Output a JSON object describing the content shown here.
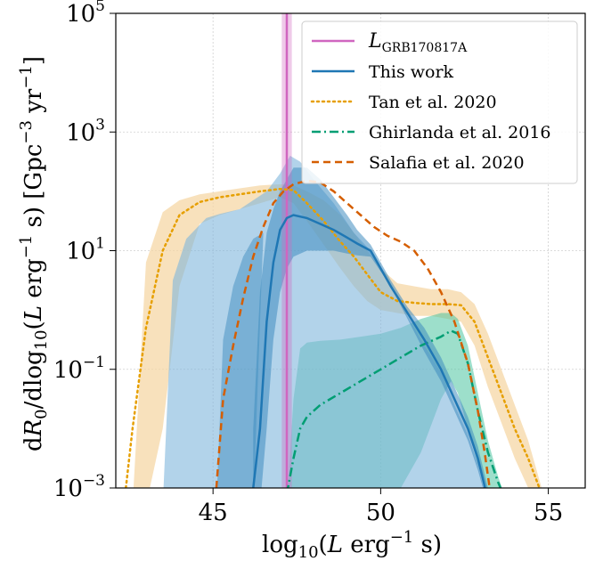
{
  "chart_data": {
    "type": "line",
    "xlabel": "log10(L erg^-1 s)",
    "ylabel": "dR0/dlog10(L erg^-1 s) [Gpc^-3 yr^-1]",
    "xlim": [
      42.1,
      56.1
    ],
    "ylim_log10": [
      -3,
      5
    ],
    "yscale": "log",
    "grid": true,
    "legend_position": "top-right",
    "xticks": [
      45,
      50,
      55
    ],
    "yticks": [
      {
        "value_log10": -3,
        "base": "10",
        "exp": "−3"
      },
      {
        "value_log10": -1,
        "base": "10",
        "exp": "−1"
      },
      {
        "value_log10": 1,
        "base": "10",
        "exp": "1"
      },
      {
        "value_log10": 3,
        "base": "10",
        "exp": "3"
      },
      {
        "value_log10": 5,
        "base": "10",
        "exp": "5"
      }
    ],
    "vertical_line": {
      "name": "L_GRB170817A",
      "x": 47.2,
      "band": [
        47.05,
        47.35
      ],
      "color": "#d066c0"
    },
    "series": [
      {
        "name": "This work",
        "color": "#1f77b4",
        "style": "solid",
        "x": [
          46.2,
          46.4,
          46.6,
          46.8,
          47.0,
          47.2,
          47.4,
          47.8,
          48.2,
          48.6,
          49.0,
          49.3,
          49.7,
          50.3,
          50.8,
          51.3,
          51.8,
          52.2,
          52.6,
          52.9,
          53.2
        ],
        "y_log10": [
          -3,
          -2.0,
          -0.2,
          0.8,
          1.35,
          1.55,
          1.6,
          1.55,
          1.45,
          1.35,
          1.22,
          1.12,
          1.0,
          0.4,
          -0.05,
          -0.5,
          -1.0,
          -1.5,
          -2.0,
          -2.5,
          -3.2
        ],
        "band_lower_log10": [
          -3.3,
          -3.3,
          -2.0,
          -0.5,
          0.3,
          0.7,
          0.9,
          1.0,
          1.0,
          1.0,
          0.95,
          0.92,
          0.9,
          0.4,
          -0.15,
          -0.7,
          -1.2,
          -1.7,
          -2.2,
          -2.7,
          -3.3
        ],
        "band_upper_log10": [
          -2.0,
          0.3,
          1.3,
          1.7,
          2.0,
          2.2,
          2.4,
          2.4,
          2.2,
          1.9,
          1.6,
          1.35,
          1.1,
          0.5,
          0.05,
          -0.3,
          -0.8,
          -1.3,
          -1.8,
          -2.3,
          -3.0
        ],
        "outer_lower_log10": [
          -3.3,
          -3.3,
          -3.3,
          -3.3,
          -1.5,
          -0.5,
          0.2,
          0.6,
          0.8,
          0.85,
          0.85,
          0.85,
          0.85,
          0.3,
          -0.25,
          -0.8,
          -1.3,
          -1.8,
          -2.3,
          -2.8,
          -3.3
        ],
        "outer_x": [
          43.5,
          43.8,
          44.2,
          44.8,
          45.2,
          45.8,
          46.2,
          46.6,
          47.0,
          47.3,
          47.6,
          48.0,
          48.6,
          49.2,
          49.7
        ],
        "outer_upper_log10": [
          -3.3,
          0.5,
          1.2,
          1.55,
          1.62,
          1.7,
          1.85,
          2.0,
          2.3,
          2.6,
          2.5,
          2.2,
          1.8,
          1.3,
          1.0
        ]
      },
      {
        "name": "Tan et al. 2020",
        "color": "#e69f00",
        "style": "dotted",
        "x": [
          42.4,
          42.6,
          43.0,
          43.5,
          44.0,
          44.6,
          45.2,
          45.8,
          46.4,
          47.0,
          47.4,
          47.8,
          48.3,
          48.8,
          49.2,
          49.6,
          50.0,
          50.5,
          51.0,
          51.5,
          52.0,
          52.4,
          52.8,
          53.2,
          53.6,
          54.0,
          54.4,
          54.8
        ],
        "y_log10": [
          -3.0,
          -2.0,
          -0.3,
          1.0,
          1.6,
          1.82,
          1.9,
          1.95,
          2.0,
          2.04,
          2.02,
          1.8,
          1.5,
          1.15,
          0.9,
          0.6,
          0.3,
          0.15,
          0.12,
          0.1,
          0.1,
          0.08,
          -0.2,
          -0.8,
          -1.4,
          -2.0,
          -2.5,
          -3.1
        ],
        "band_lower_log10": [
          -3.3,
          -3.3,
          -3.3,
          -2.0,
          0.4,
          1.45,
          1.6,
          1.7,
          1.8,
          1.9,
          1.8,
          1.5,
          1.1,
          0.7,
          0.4,
          0.15,
          0.0,
          -0.05,
          -0.1,
          -0.1,
          -0.15,
          -0.2,
          -0.6,
          -1.3,
          -1.9,
          -2.5,
          -3.0,
          -3.3
        ],
        "band_upper_log10": [
          -3.3,
          -3.3,
          0.8,
          1.65,
          1.85,
          1.95,
          2.0,
          2.05,
          2.1,
          2.12,
          2.1,
          2.0,
          1.85,
          1.6,
          1.3,
          1.0,
          0.7,
          0.45,
          0.4,
          0.35,
          0.35,
          0.3,
          0.1,
          -0.4,
          -1.0,
          -1.6,
          -2.2,
          -3.0
        ]
      },
      {
        "name": "Ghirlanda et al. 2016",
        "color": "#009e73",
        "style": "dashdot",
        "x": [
          47.2,
          47.4,
          47.6,
          47.8,
          48.2,
          48.8,
          49.4,
          50.0,
          50.6,
          51.2,
          51.8,
          52.1,
          52.3,
          52.6,
          52.9,
          53.2,
          53.5,
          53.8
        ],
        "y_log10": [
          -3.1,
          -2.5,
          -2.0,
          -1.8,
          -1.6,
          -1.4,
          -1.2,
          -1.0,
          -0.8,
          -0.6,
          -0.45,
          -0.35,
          -0.4,
          -0.9,
          -1.7,
          -2.4,
          -2.9,
          -3.3
        ],
        "band_lower_log10": [
          -3.3,
          -3.3,
          -3.3,
          -3.3,
          -3.3,
          -3.3,
          -3.3,
          -3.3,
          -3.0,
          -2.4,
          -1.5,
          -1.2,
          -1.4,
          -2.0,
          -2.6,
          -3.1,
          -3.3,
          -3.3
        ],
        "band_upper_log10": [
          -3.3,
          -1.5,
          -0.65,
          -0.55,
          -0.52,
          -0.5,
          -0.45,
          -0.4,
          -0.3,
          -0.15,
          -0.05,
          -0.05,
          -0.15,
          -0.6,
          -1.4,
          -2.2,
          -2.8,
          -3.3
        ],
        "band_left_x": [
          46.8,
          47.0,
          47.2
        ],
        "band_left_upper_log10": [
          -3.3,
          -1.8,
          -1.0
        ]
      },
      {
        "name": "Salafia et al. 2020",
        "color": "#d55e00",
        "style": "dashed",
        "x": [
          45.1,
          45.3,
          45.6,
          45.9,
          46.2,
          46.5,
          46.8,
          47.1,
          47.4,
          47.8,
          48.2,
          48.6,
          49.0,
          49.4,
          49.8,
          50.2,
          50.6,
          51.0,
          51.4,
          51.8,
          52.2,
          52.6,
          52.9,
          53.1,
          53.3
        ],
        "y_log10": [
          -3.0,
          -1.5,
          -0.6,
          0.2,
          0.9,
          1.4,
          1.8,
          2.0,
          2.12,
          2.18,
          2.15,
          2.0,
          1.8,
          1.6,
          1.4,
          1.25,
          1.15,
          1.0,
          0.7,
          0.3,
          -0.2,
          -0.9,
          -1.7,
          -2.4,
          -3.2
        ]
      }
    ]
  },
  "legend": {
    "items": [
      {
        "label_main": "L",
        "label_sub": "GRB170817A",
        "color": "#d066c0",
        "style": "solid"
      },
      {
        "label_main": "This work",
        "color": "#1f77b4",
        "style": "solid"
      },
      {
        "label_main": "Tan et al. 2020",
        "color": "#e69f00",
        "style": "dotted"
      },
      {
        "label_main": "Ghirlanda et al. 2016",
        "color": "#009e73",
        "style": "dashdot"
      },
      {
        "label_main": "Salafia et al. 2020",
        "color": "#d55e00",
        "style": "dashed"
      }
    ]
  }
}
